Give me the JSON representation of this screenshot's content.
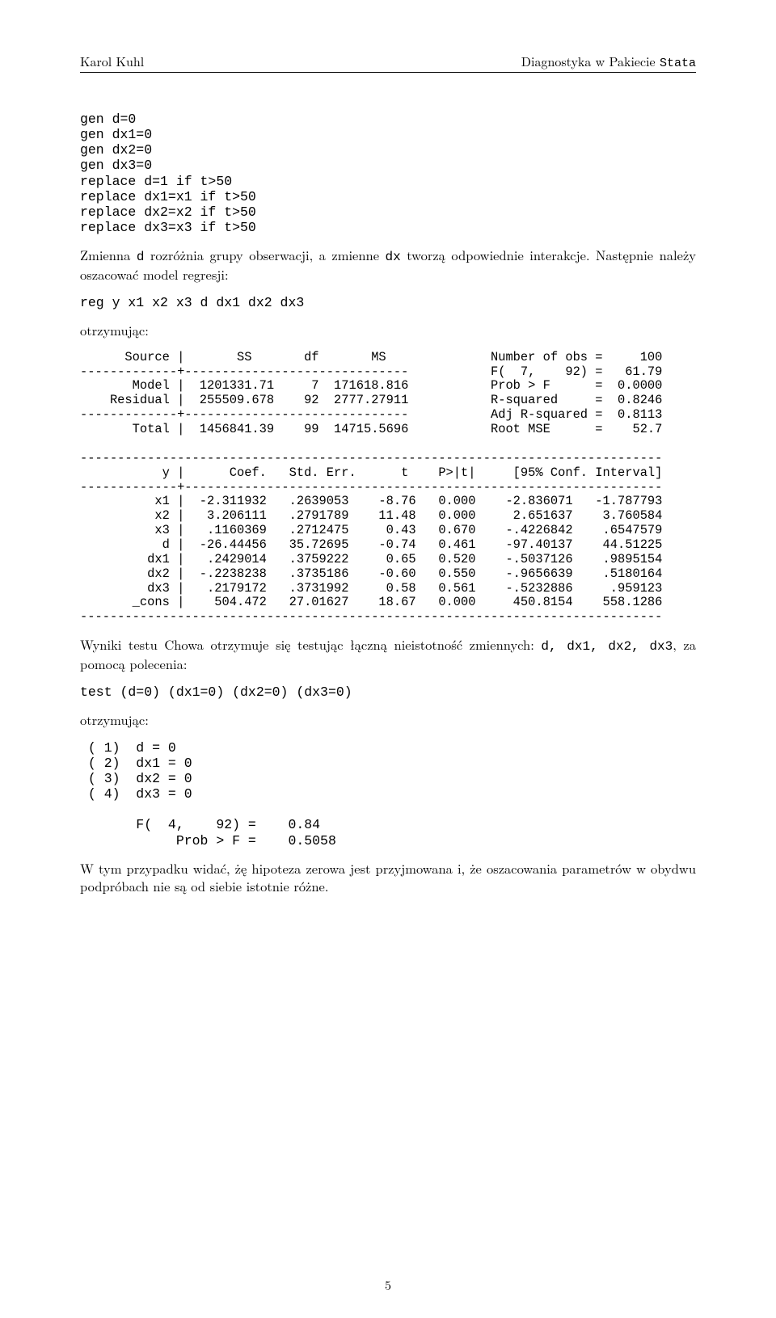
{
  "header": {
    "left": "Karol Kuhl",
    "right_prefix": "Diagnostyka w Pakiecie ",
    "right_tt": "Stata"
  },
  "code_top": "gen d=0\ngen dx1=0\ngen dx2=0\ngen dx3=0\nreplace d=1 if t>50\nreplace dx1=x1 if t>50\nreplace dx2=x2 if t>50\nreplace dx3=x3 if t>50",
  "para1_a": "Zmienna ",
  "para1_tt1": "d",
  "para1_b": " rozróżnia grupy obserwacji, a zmienne ",
  "para1_tt2": "dx",
  "para1_c": " tworzą odpowiednie interakcje. Następnie należy oszacować model regresji:",
  "code_reg": "reg y x1 x2 x3 d dx1 dx2 dx3",
  "para2": "otrzymując:",
  "stata_output": "      Source |       SS       df       MS              Number of obs =     100\n-------------+------------------------------           F(  7,    92) =   61.79\n       Model |  1201331.71     7  171618.816           Prob > F      =  0.0000\n    Residual |  255509.678    92  2777.27911           R-squared     =  0.8246\n-------------+------------------------------           Adj R-squared =  0.8113\n       Total |  1456841.39    99  14715.5696           Root MSE      =    52.7\n\n------------------------------------------------------------------------------\n           y |      Coef.   Std. Err.      t    P>|t|     [95% Conf. Interval]\n-------------+----------------------------------------------------------------\n          x1 |  -2.311932   .2639053    -8.76   0.000    -2.836071   -1.787793\n          x2 |   3.206111   .2791789    11.48   0.000     2.651637    3.760584\n          x3 |   .1160369   .2712475     0.43   0.670    -.4226842    .6547579\n           d |  -26.44456   35.72695    -0.74   0.461    -97.40137    44.51225\n         dx1 |   .2429014   .3759222     0.65   0.520    -.5037126    .9895154\n         dx2 |  -.2238238   .3735186    -0.60   0.550    -.9656639    .5180164\n         dx3 |   .2179172   .3731992     0.58   0.561    -.5232886     .959123\n       _cons |    504.472   27.01627    18.67   0.000     450.8154    558.1286\n------------------------------------------------------------------------------",
  "para3_a": "Wyniki testu Chowa otrzymuje się testując łączną nieistotność zmiennych: ",
  "para3_tt": "d, dx1, dx2, dx3",
  "para3_b": ", za pomocą polecenia:",
  "code_test": "test (d=0) (dx1=0) (dx2=0) (dx3=0)",
  "para4": "otrzymując:",
  "test_output": " ( 1)  d = 0\n ( 2)  dx1 = 0\n ( 3)  dx2 = 0\n ( 4)  dx3 = 0\n\n       F(  4,    92) =    0.84\n            Prob > F =    0.5058",
  "para5": "W tym przypadku widać, żę hipoteza zerowa jest przyjmowana i, że oszacowania parametrów w obydwu podpróbach nie są od siebie istotnie różne.",
  "pagenum": "5"
}
